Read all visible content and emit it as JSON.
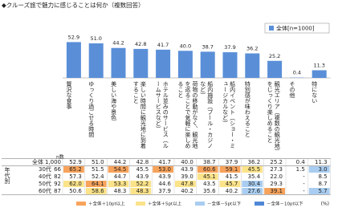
{
  "chart_data": {
    "type": "bar",
    "title": "◆クルーズ旅で魅力に感じることは何か（複数回答）",
    "series": [
      {
        "name": "全体[n=1000]",
        "color": "#5a8fd8",
        "values": [
          52.9,
          51.0,
          44.2,
          42.8,
          41.7,
          40.0,
          38.7,
          37.9,
          36.2,
          25.2,
          0.4,
          11.3
        ],
        "value_labels": [
          "52.9",
          "51.0",
          "44.2",
          "42.8",
          "41.7",
          "40.0",
          "38.7",
          "37.9",
          "36.2",
          "25.2",
          "0.4",
          "11.3"
        ]
      }
    ],
    "categories": [
      "贅沢な食事",
      "ゆっくり過ごせる時間",
      "美しい海や景色",
      "楽しい時間に観光地に到着すること",
      "ホテル並みのサービス（ルームサービスなど）",
      "荷物の移動がなく、観光地を巡ることで気軽に楽しめること",
      "船内施設（プール・カジノなど）",
      "船内イベント（ショー・ミュージカルなど）",
      "特別感が味わえること",
      "観光エリア（複数の観光地）をじっくり楽しめること",
      "その他",
      "特にない"
    ],
    "ylim": [
      0,
      70
    ]
  },
  "table": {
    "n_header": "n数",
    "group_label": "年代別",
    "rows": [
      {
        "label": "全体",
        "n": "1,000",
        "cells": [
          "52.9",
          "51.0",
          "44.2",
          "42.8",
          "41.7",
          "40.0",
          "38.7",
          "37.9",
          "36.2",
          "25.2",
          "0.4",
          "11.3"
        ]
      },
      {
        "label": "30代",
        "n": "66",
        "cells": [
          "65.2",
          "51.5",
          "54.5",
          "45.5",
          "53.0",
          "43.9",
          "60.6",
          "59.1",
          "45.5",
          "27.3",
          "1.5",
          "3.0"
        ]
      },
      {
        "label": "40代",
        "n": "82",
        "cells": [
          "57.3",
          "52.4",
          "44.7",
          "43.9",
          "43.9",
          "39.0",
          "45.1",
          "41.5",
          "35.4",
          "22.0",
          "-",
          "8.5"
        ]
      },
      {
        "label": "50代",
        "n": "92",
        "cells": [
          "62.0",
          "64.1",
          "53.3",
          "52.2",
          "44.6",
          "47.8",
          "43.5",
          "45.7",
          "30.4",
          "29.3",
          "-",
          "8.7"
        ]
      },
      {
        "label": "60代",
        "n": "87",
        "cells": [
          "50.6",
          "58.6",
          "48.3",
          "48.3",
          "37.9",
          "40.2",
          "35.6",
          "40.2",
          "27.6",
          "39.1",
          "-",
          "5.7"
        ]
      }
    ]
  },
  "legend": {
    "unit": "(%)",
    "items": [
      {
        "label": "＋全体＋10pt以上",
        "min_diff": 10,
        "color": "#f7a35c"
      },
      {
        "label": "＋全体＋5pt以上",
        "min_diff": 5,
        "color": "#fbe38a"
      },
      {
        "label": "－全体－5pt以下",
        "max_diff": -5,
        "color": "#a9cdf0"
      },
      {
        "label": "－全体－10pt以下",
        "max_diff": -10,
        "color": "#4f88d6"
      }
    ]
  }
}
